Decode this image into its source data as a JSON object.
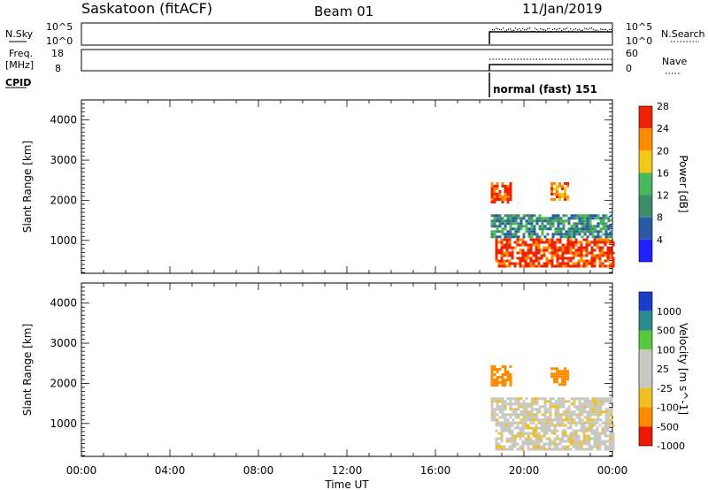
{
  "header": {
    "title": "Saskatoon (fitACF)",
    "beam": "Beam 01",
    "date": "11/Jan/2019"
  },
  "panels": {
    "nsky": {
      "label": "N.Sky",
      "ticks": [
        "10^5",
        "10^0"
      ],
      "right_ticks": [
        "10^5",
        "10^0"
      ],
      "right_label": "N.Search"
    },
    "freq": {
      "label": "Freq.",
      "unit": "[MHz]",
      "ticks": [
        "18",
        "8"
      ],
      "right_ticks": [
        "60",
        "0"
      ],
      "right_label": "Nave"
    },
    "cpid": {
      "label": "CPID",
      "mode_text": "normal (fast) 151"
    }
  },
  "chart_data": [
    {
      "type": "heatmap",
      "title": "",
      "ylabel": "Slant Range [km]",
      "xlim": [
        "00:00",
        "24:00"
      ],
      "ylim": [
        180,
        4500
      ],
      "yticks": [
        "1000",
        "2000",
        "3000",
        "4000"
      ],
      "data_start": "18:30",
      "colorbar": {
        "label": "Power [dB]",
        "ticks": [
          "4",
          "8",
          "12",
          "16",
          "20",
          "24",
          "28"
        ],
        "colors": [
          "#1e22ff",
          "#2a5aa6",
          "#3d8c6a",
          "#48b85a",
          "#f2c814",
          "#ff8c00",
          "#ee2200"
        ]
      },
      "regions": [
        {
          "t0": 18.5,
          "t1": 19.4,
          "r0": 1950,
          "r1": 2450,
          "level": 28
        },
        {
          "t0": 21.2,
          "t1": 22.0,
          "r0": 2050,
          "r1": 2450,
          "level": 24
        },
        {
          "t0": 18.5,
          "t1": 24.0,
          "r0": 1100,
          "r1": 1650,
          "level": 12
        },
        {
          "t0": 18.7,
          "t1": 24.0,
          "r0": 350,
          "r1": 1050,
          "level": 28
        }
      ]
    },
    {
      "type": "heatmap",
      "title": "",
      "ylabel": "Slant Range [km]",
      "xlabel": "Time UT",
      "xlim": [
        "00:00",
        "24:00"
      ],
      "ylim": [
        180,
        4500
      ],
      "yticks": [
        "1000",
        "2000",
        "3000",
        "4000"
      ],
      "xticks": [
        "00:00",
        "04:00",
        "08:00",
        "12:00",
        "16:00",
        "20:00",
        "00:00"
      ],
      "data_start": "18:30",
      "colorbar": {
        "label": "Velocity [m s^-1]",
        "ticks": [
          "1000",
          "500",
          "100",
          "25",
          "-25",
          "-100",
          "-500",
          "-1000"
        ],
        "colors": [
          "#1a3ec8",
          "#2a8c8c",
          "#58c840",
          "#c8c8c0",
          "#c8c8c0",
          "#f0c020",
          "#ff8c00",
          "#ee1800"
        ]
      },
      "regions": [
        {
          "t0": 18.5,
          "t1": 19.4,
          "r0": 1950,
          "r1": 2450,
          "level": -500
        },
        {
          "t0": 21.2,
          "t1": 22.0,
          "r0": 2000,
          "r1": 2400,
          "level": -500
        },
        {
          "t0": 18.5,
          "t1": 24.0,
          "r0": 1100,
          "r1": 1650,
          "level": 0
        },
        {
          "t0": 18.7,
          "t1": 24.0,
          "r0": 350,
          "r1": 1050,
          "level": 0
        }
      ]
    }
  ]
}
